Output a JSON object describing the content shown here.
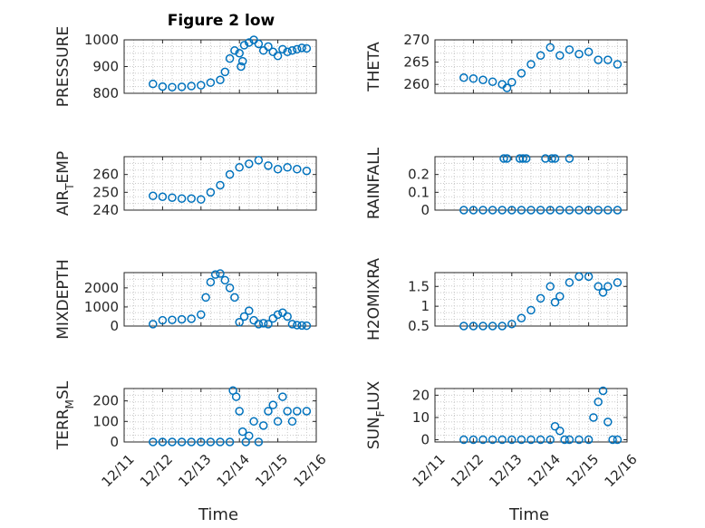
{
  "figure": {
    "title": "Figure 2 low",
    "marker_color": "#0072BD"
  },
  "chart_data": [
    {
      "type": "scatter",
      "ylabel": "PRESSURE",
      "ylim": [
        800,
        1000
      ],
      "yticks": [
        800,
        900,
        1000
      ],
      "xticklabels_shown": false,
      "grid": true,
      "x": [
        "2020-12-11 18:00",
        "2020-12-12 00:00",
        "2020-12-12 06:00",
        "2020-12-12 12:00",
        "2020-12-12 18:00",
        "2020-12-13 00:00",
        "2020-12-13 06:00",
        "2020-12-13 12:00",
        "2020-12-13 15:00",
        "2020-12-13 18:00",
        "2020-12-13 21:00",
        "2020-12-14 00:00",
        "2020-12-14 01:00",
        "2020-12-14 02:00",
        "2020-12-14 03:00",
        "2020-12-14 06:00",
        "2020-12-14 09:00",
        "2020-12-14 12:00",
        "2020-12-14 15:00",
        "2020-12-14 18:00",
        "2020-12-14 21:00",
        "2020-12-15 00:00",
        "2020-12-15 03:00",
        "2020-12-15 06:00",
        "2020-12-15 09:00",
        "2020-12-15 12:00",
        "2020-12-15 15:00",
        "2020-12-15 18:00"
      ],
      "y": [
        835,
        825,
        823,
        824,
        827,
        830,
        840,
        850,
        880,
        930,
        960,
        950,
        900,
        920,
        980,
        990,
        1000,
        985,
        960,
        975,
        955,
        940,
        965,
        955,
        960,
        965,
        970,
        968
      ]
    },
    {
      "type": "scatter",
      "ylabel": "THETA",
      "ylim": [
        258,
        270
      ],
      "yticks": [
        260,
        265,
        270
      ],
      "xticklabels_shown": false,
      "grid": true,
      "x": [
        "2020-12-11 18:00",
        "2020-12-12 00:00",
        "2020-12-12 06:00",
        "2020-12-12 12:00",
        "2020-12-12 18:00",
        "2020-12-12 21:00",
        "2020-12-13 00:00",
        "2020-12-13 06:00",
        "2020-12-13 12:00",
        "2020-12-13 18:00",
        "2020-12-14 00:00",
        "2020-12-14 06:00",
        "2020-12-14 12:00",
        "2020-12-14 18:00",
        "2020-12-15 00:00",
        "2020-12-15 06:00",
        "2020-12-15 12:00",
        "2020-12-15 18:00"
      ],
      "y": [
        261.5,
        261.3,
        261.0,
        260.6,
        260.0,
        259.2,
        260.5,
        262.5,
        264.5,
        266.5,
        268.3,
        266.5,
        267.8,
        266.8,
        267.3,
        265.5,
        265.5,
        264.5
      ]
    },
    {
      "type": "scatter",
      "ylabel": "AIR",
      "ylabel_sub": "T",
      "ylabel_tail": "EMP",
      "ylim": [
        240,
        270
      ],
      "yticks": [
        240,
        250,
        260
      ],
      "xticklabels_shown": false,
      "grid": true,
      "x": [
        "2020-12-11 18:00",
        "2020-12-12 00:00",
        "2020-12-12 06:00",
        "2020-12-12 12:00",
        "2020-12-12 18:00",
        "2020-12-13 00:00",
        "2020-12-13 06:00",
        "2020-12-13 12:00",
        "2020-12-13 18:00",
        "2020-12-14 00:00",
        "2020-12-14 06:00",
        "2020-12-14 12:00",
        "2020-12-14 18:00",
        "2020-12-15 00:00",
        "2020-12-15 06:00",
        "2020-12-15 12:00",
        "2020-12-15 18:00"
      ],
      "y": [
        248,
        247.5,
        247,
        246.5,
        246.5,
        246,
        250,
        254,
        260,
        264,
        266,
        268,
        265,
        263,
        264,
        263,
        262
      ]
    },
    {
      "type": "scatter",
      "ylabel": "RAINFALL",
      "ylim": [
        0,
        0.3
      ],
      "yticks": [
        0,
        0.1,
        0.2
      ],
      "xticklabels_shown": false,
      "grid": true,
      "x": [
        "2020-12-11 18:00",
        "2020-12-12 00:00",
        "2020-12-12 06:00",
        "2020-12-12 12:00",
        "2020-12-12 18:00",
        "2020-12-13 00:00",
        "2020-12-13 06:00",
        "2020-12-13 12:00",
        "2020-12-13 18:00",
        "2020-12-14 00:00",
        "2020-12-14 06:00",
        "2020-12-14 12:00",
        "2020-12-14 18:00",
        "2020-12-15 00:00",
        "2020-12-15 06:00",
        "2020-12-15 12:00",
        "2020-12-15 18:00",
        "2020-12-12 19:00",
        "2020-12-12 21:00",
        "2020-12-13 05:00",
        "2020-12-13 07:00",
        "2020-12-13 09:00",
        "2020-12-13 21:00",
        "2020-12-14 01:00",
        "2020-12-14 03:00",
        "2020-12-14 12:00"
      ],
      "y": [
        0,
        0,
        0,
        0,
        0,
        0,
        0,
        0,
        0,
        0,
        0,
        0,
        0,
        0,
        0,
        0,
        0,
        0.29,
        0.29,
        0.29,
        0.29,
        0.29,
        0.29,
        0.29,
        0.29,
        0.29
      ]
    },
    {
      "type": "scatter",
      "ylabel": "MIXDEPTH",
      "ylim": [
        0,
        2800
      ],
      "yticks": [
        0,
        1000,
        2000
      ],
      "xticklabels_shown": false,
      "grid": true,
      "x": [
        "2020-12-11 18:00",
        "2020-12-12 00:00",
        "2020-12-12 06:00",
        "2020-12-12 12:00",
        "2020-12-12 18:00",
        "2020-12-13 00:00",
        "2020-12-13 03:00",
        "2020-12-13 06:00",
        "2020-12-13 09:00",
        "2020-12-13 12:00",
        "2020-12-13 15:00",
        "2020-12-13 18:00",
        "2020-12-13 21:00",
        "2020-12-14 00:00",
        "2020-12-14 03:00",
        "2020-12-14 06:00",
        "2020-12-14 09:00",
        "2020-12-14 12:00",
        "2020-12-14 15:00",
        "2020-12-14 18:00",
        "2020-12-14 21:00",
        "2020-12-15 00:00",
        "2020-12-15 03:00",
        "2020-12-15 06:00",
        "2020-12-15 09:00",
        "2020-12-15 12:00",
        "2020-12-15 15:00",
        "2020-12-15 18:00"
      ],
      "y": [
        100,
        300,
        320,
        350,
        380,
        600,
        1500,
        2300,
        2700,
        2750,
        2400,
        2000,
        1500,
        200,
        500,
        800,
        300,
        100,
        150,
        100,
        400,
        600,
        700,
        500,
        100,
        50,
        30,
        20
      ]
    },
    {
      "type": "scatter",
      "ylabel": "H2OMIXRA",
      "ylim": [
        0.5,
        1.85
      ],
      "yticks": [
        0.5,
        1,
        1.5
      ],
      "xticklabels_shown": false,
      "grid": true,
      "x": [
        "2020-12-11 18:00",
        "2020-12-12 00:00",
        "2020-12-12 06:00",
        "2020-12-12 12:00",
        "2020-12-12 18:00",
        "2020-12-13 00:00",
        "2020-12-13 06:00",
        "2020-12-13 12:00",
        "2020-12-13 18:00",
        "2020-12-14 00:00",
        "2020-12-14 03:00",
        "2020-12-14 06:00",
        "2020-12-14 12:00",
        "2020-12-14 18:00",
        "2020-12-15 00:00",
        "2020-12-15 06:00",
        "2020-12-15 09:00",
        "2020-12-15 12:00",
        "2020-12-15 18:00"
      ],
      "y": [
        0.5,
        0.5,
        0.5,
        0.5,
        0.5,
        0.55,
        0.7,
        0.9,
        1.2,
        1.5,
        1.1,
        1.25,
        1.6,
        1.75,
        1.75,
        1.5,
        1.35,
        1.5,
        1.6
      ]
    },
    {
      "type": "scatter",
      "ylabel": "TERR",
      "ylabel_sub": "M",
      "ylabel_tail": "SL",
      "ylim": [
        0,
        260
      ],
      "yticks": [
        0,
        100,
        200
      ],
      "xticklabels_shown": true,
      "xlabel": "Time",
      "xticklabels": [
        "12/11",
        "12/12",
        "12/13",
        "12/14",
        "12/15",
        "12/16"
      ],
      "grid": true,
      "x": [
        "2020-12-11 18:00",
        "2020-12-12 00:00",
        "2020-12-12 06:00",
        "2020-12-12 12:00",
        "2020-12-12 18:00",
        "2020-12-13 00:00",
        "2020-12-13 06:00",
        "2020-12-13 12:00",
        "2020-12-13 18:00",
        "2020-12-13 20:00",
        "2020-12-13 22:00",
        "2020-12-14 00:00",
        "2020-12-14 02:00",
        "2020-12-14 04:00",
        "2020-12-14 06:00",
        "2020-12-14 09:00",
        "2020-12-14 12:00",
        "2020-12-14 15:00",
        "2020-12-14 18:00",
        "2020-12-14 21:00",
        "2020-12-15 00:00",
        "2020-12-15 03:00",
        "2020-12-15 06:00",
        "2020-12-15 09:00",
        "2020-12-15 12:00",
        "2020-12-15 18:00"
      ],
      "y": [
        0,
        0,
        0,
        0,
        0,
        0,
        0,
        0,
        0,
        250,
        220,
        150,
        50,
        0,
        30,
        100,
        0,
        80,
        150,
        180,
        100,
        220,
        150,
        100,
        150,
        150
      ]
    },
    {
      "type": "scatter",
      "ylabel": "SUN",
      "ylabel_sub": "F",
      "ylabel_tail": "LUX",
      "ylim": [
        -1,
        23
      ],
      "yticks": [
        0,
        10,
        20
      ],
      "xticklabels_shown": true,
      "xlabel": "Time",
      "xticklabels": [
        "12/11",
        "12/12",
        "12/13",
        "12/14",
        "12/15",
        "12/16"
      ],
      "grid": true,
      "x": [
        "2020-12-11 18:00",
        "2020-12-12 00:00",
        "2020-12-12 06:00",
        "2020-12-12 12:00",
        "2020-12-12 18:00",
        "2020-12-13 00:00",
        "2020-12-13 06:00",
        "2020-12-13 12:00",
        "2020-12-13 18:00",
        "2020-12-14 00:00",
        "2020-12-14 03:00",
        "2020-12-14 06:00",
        "2020-12-14 09:00",
        "2020-12-14 12:00",
        "2020-12-14 18:00",
        "2020-12-15 00:00",
        "2020-12-15 03:00",
        "2020-12-15 06:00",
        "2020-12-15 09:00",
        "2020-12-15 12:00",
        "2020-12-15 15:00",
        "2020-12-15 18:00"
      ],
      "y": [
        0,
        0,
        0,
        0,
        0,
        0,
        0,
        0,
        0,
        0,
        6,
        4,
        0,
        0,
        0,
        0,
        10,
        17,
        22,
        8,
        0,
        0
      ]
    }
  ]
}
